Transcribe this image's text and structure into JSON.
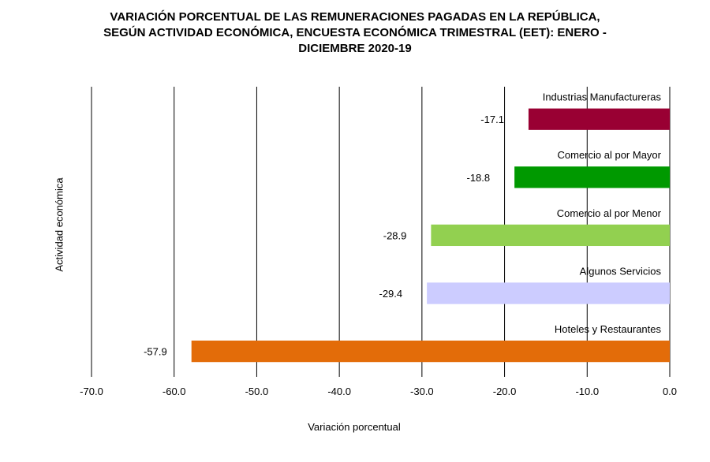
{
  "chart_data": {
    "type": "bar",
    "orientation": "horizontal",
    "title_lines": [
      "VARIACIÓN  PORCENTUAL  DE  LAS  REMUNERACIONES  PAGADAS  EN  LA REPÚBLICA,",
      "SEGÚN ACTIVIDAD ECONÓMICA, ENCUESTA ECONÓMICA TRIMESTRAL (EET): ENERO -",
      "DICIEMBRE 2020-19"
    ],
    "xlabel": "Variación porcentual",
    "ylabel": "Actividad económica",
    "xlim": [
      -70,
      0
    ],
    "xticks": [
      -70,
      -60,
      -50,
      -40,
      -30,
      -20,
      -10,
      0
    ],
    "xtick_labels": [
      "-70.0",
      "-60.0",
      "-50.0",
      "-40.0",
      "-30.0",
      "-20.0",
      "-10.0",
      "0.0"
    ],
    "grid": true,
    "categories": [
      "Industrias Manufactureras",
      "Comercio al por Mayor",
      "Comercio al por Menor",
      "Algunos Servicios",
      "Hoteles y Restaurantes"
    ],
    "values": [
      -17.1,
      -18.8,
      -28.9,
      -29.4,
      -57.9
    ],
    "value_labels": [
      "-17.1",
      "-18.8",
      "-28.9",
      "-29.4",
      "-57.9"
    ],
    "colors": [
      "#990033",
      "#009900",
      "#92D050",
      "#CCCCFF",
      "#E36C09"
    ]
  }
}
